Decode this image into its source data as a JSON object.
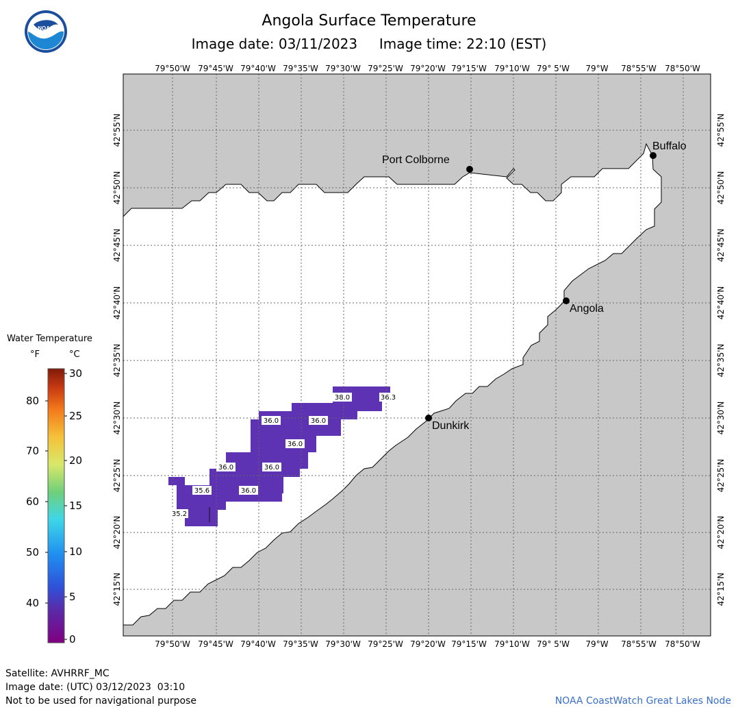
{
  "header": {
    "title": "Angola Surface Temperature",
    "subtitle": "Image date: 03/11/2023     Image time: 22:10 (EST)"
  },
  "map": {
    "longitude_labels": [
      "79°50'W",
      "79°45'W",
      "79°40'W",
      "79°35'W",
      "79°30'W",
      "79°25'W",
      "79°20'W",
      "79°15'W",
      "79°10'W",
      "79° 5'W",
      "79°W",
      "78°55'W",
      "78°50'W"
    ],
    "latitude_labels": [
      "42°55'N",
      "42°50'N",
      "42°45'N",
      "42°40'N",
      "42°35'N",
      "42°30'N",
      "42°25'N",
      "42°20'N",
      "42°15'N"
    ],
    "cities": [
      {
        "name": "Port Colborne"
      },
      {
        "name": "Buffalo"
      },
      {
        "name": "Angola"
      },
      {
        "name": "Dunkirk"
      }
    ],
    "temperature_labels": [
      "38.0",
      "36.3",
      "36.0",
      "36.0",
      "36.0",
      "36.0",
      "36.0",
      "36.0",
      "35.6",
      "36.0",
      "35.2"
    ],
    "colors": {
      "land": "#c8c8c8",
      "water": "#ffffff",
      "temperature_fill": "#5d33b3",
      "grid": "#666666"
    }
  },
  "legend": {
    "title": "Water Temperature",
    "unit_f": "°F",
    "unit_c": "°C",
    "fahrenheit_ticks": [
      "80",
      "70",
      "60",
      "50",
      "40"
    ],
    "celsius_ticks": [
      "30",
      "25",
      "20",
      "15",
      "10",
      "5",
      "0"
    ],
    "colors": [
      "#800080",
      "#4b2fb0",
      "#1f6fe0",
      "#2fb3f0",
      "#4de0d0",
      "#6ccf5a",
      "#e8e86a",
      "#f2b23a",
      "#f47a1a",
      "#cc3b14",
      "#8a1b0a"
    ]
  },
  "footer": {
    "satellite": "Satellite: AVHRRF_MC",
    "image_date_utc": "Image date: (UTC) 03/12/2023  03:10",
    "disclaimer": "Not to be used for navigational purpose",
    "credit": "NOAA CoastWatch Great Lakes Node"
  }
}
